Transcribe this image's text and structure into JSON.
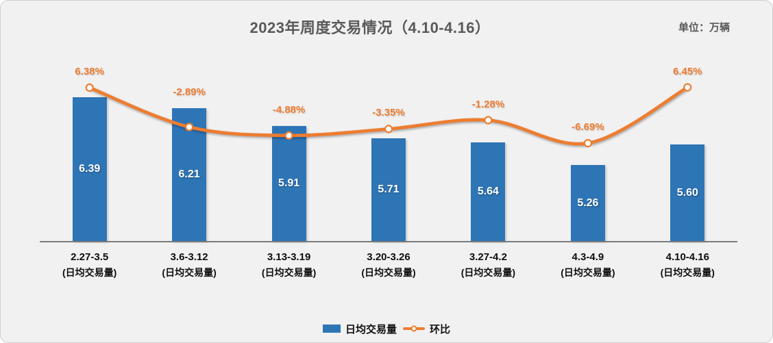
{
  "chart_data": {
    "type": "bar",
    "title": "2023年周度交易情况（4.10-4.16）",
    "unit": "单位：万辆",
    "categories": [
      "2.27-3.5",
      "3.6-3.12",
      "3.13-3.19",
      "3.20-3.26",
      "3.27-4.2",
      "4.3-4.9",
      "4.10-4.16"
    ],
    "category_sublabel": "(日均交易量)",
    "series": [
      {
        "name": "日均交易量",
        "type": "bar",
        "values": [
          6.39,
          6.21,
          5.91,
          5.71,
          5.64,
          5.26,
          5.6
        ],
        "labels": [
          "6.39",
          "6.21",
          "5.91",
          "5.71",
          "5.64",
          "5.26",
          "5.60"
        ],
        "color": "#2E75B6",
        "axis_min": 4,
        "axis_max": 7
      },
      {
        "name": "环比",
        "type": "line",
        "values": [
          6.38,
          -2.89,
          -4.88,
          -3.35,
          -1.28,
          -6.69,
          6.45
        ],
        "labels": [
          "6.38%",
          "-2.89%",
          "-4.88%",
          "-3.35%",
          "-1.28%",
          "-6.69%",
          "6.45%"
        ],
        "color": "#ED7D31",
        "marker_fill": "#FFFFFF",
        "axis_min": -10,
        "axis_max": 10
      }
    ],
    "legend": [
      "日均交易量",
      "环比"
    ],
    "legend_position": "bottom",
    "grid": false,
    "colors": {
      "background": "#F1F1F1",
      "axis_line": "#7A7A7A",
      "title_text": "#595959",
      "bar": "#2E75B6",
      "line": "#ED7D31"
    }
  }
}
